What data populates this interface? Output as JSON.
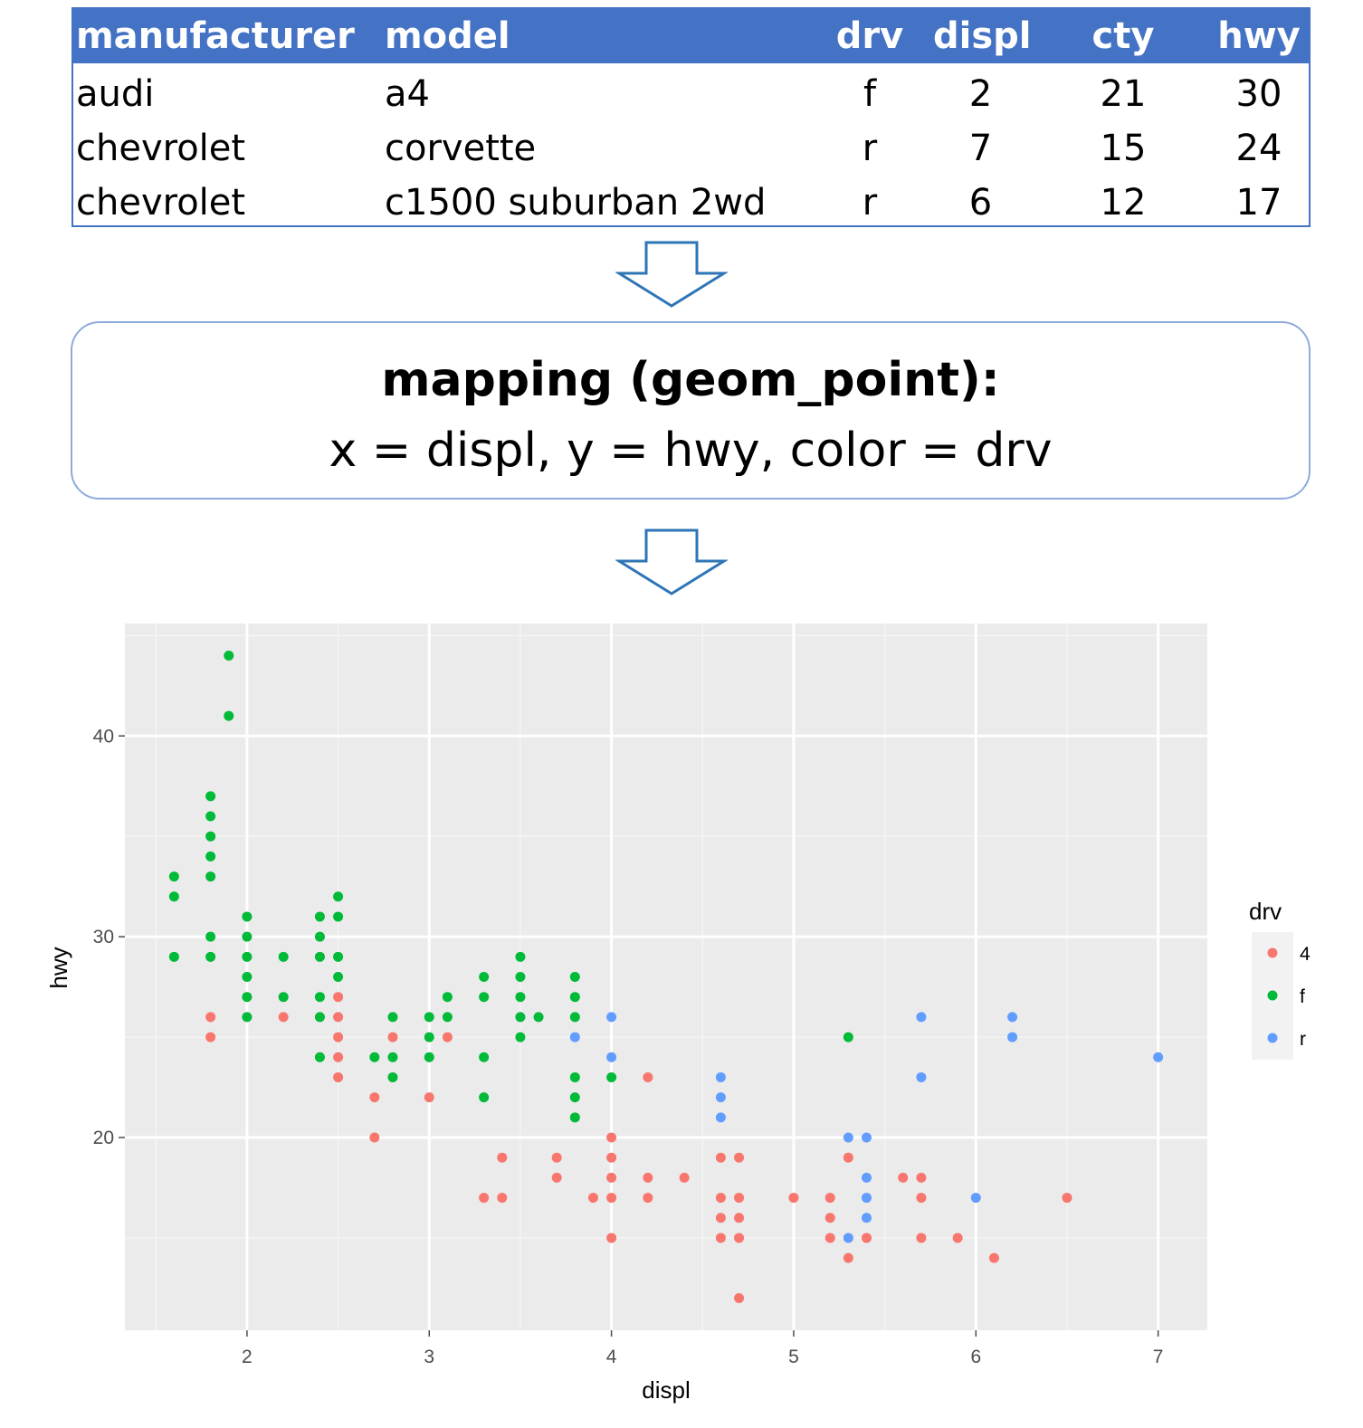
{
  "table": {
    "headers": [
      "manufacturer",
      "model",
      "drv",
      "displ",
      "cty",
      "hwy"
    ],
    "rows": [
      [
        "audi",
        "a4",
        "f",
        "2",
        "21",
        "30"
      ],
      [
        "chevrolet",
        "corvette",
        "r",
        "7",
        "15",
        "24"
      ],
      [
        "chevrolet",
        "c1500 suburban 2wd",
        "r",
        "6",
        "12",
        "17"
      ]
    ],
    "header_color": "#4472c4"
  },
  "mapping": {
    "title": "mapping (geom_point):",
    "body": "x = displ, y = hwy, color = drv"
  },
  "arrow_color": "#2e75b6",
  "chart_data": {
    "type": "scatter",
    "title": "",
    "xlabel": "displ",
    "ylabel": "hwy",
    "xlim": [
      1.33,
      7.27
    ],
    "ylim": [
      10.4,
      45.6
    ],
    "xticks": [
      "2",
      "3",
      "4",
      "5",
      "6",
      "7"
    ],
    "yticks": [
      "20",
      "30",
      "40"
    ],
    "grid": true,
    "legend": {
      "title": "drv",
      "position": "right"
    },
    "series": [
      {
        "name": "4",
        "color": "#f8766d",
        "points": [
          [
            1.8,
            26
          ],
          [
            1.8,
            25
          ],
          [
            2.2,
            26
          ],
          [
            2.5,
            27
          ],
          [
            2.5,
            26
          ],
          [
            2.5,
            25
          ],
          [
            2.5,
            24
          ],
          [
            2.5,
            23
          ],
          [
            2.7,
            22
          ],
          [
            2.7,
            20
          ],
          [
            2.8,
            25
          ],
          [
            3.0,
            22
          ],
          [
            3.1,
            25
          ],
          [
            3.4,
            19
          ],
          [
            3.4,
            17
          ],
          [
            3.3,
            17
          ],
          [
            3.7,
            19
          ],
          [
            3.7,
            18
          ],
          [
            3.9,
            17
          ],
          [
            4.0,
            20
          ],
          [
            4.0,
            19
          ],
          [
            4.0,
            18
          ],
          [
            4.0,
            17
          ],
          [
            4.0,
            15
          ],
          [
            4.2,
            23
          ],
          [
            4.2,
            18
          ],
          [
            4.2,
            17
          ],
          [
            4.4,
            18
          ],
          [
            4.6,
            19
          ],
          [
            4.6,
            17
          ],
          [
            4.6,
            16
          ],
          [
            4.6,
            15
          ],
          [
            4.7,
            19
          ],
          [
            4.7,
            17
          ],
          [
            4.7,
            16
          ],
          [
            4.7,
            15
          ],
          [
            4.7,
            12
          ],
          [
            5.0,
            17
          ],
          [
            5.2,
            17
          ],
          [
            5.2,
            16
          ],
          [
            5.2,
            15
          ],
          [
            5.3,
            19
          ],
          [
            5.3,
            14
          ],
          [
            5.4,
            15
          ],
          [
            5.6,
            18
          ],
          [
            5.7,
            18
          ],
          [
            5.7,
            17
          ],
          [
            5.7,
            15
          ],
          [
            5.9,
            15
          ],
          [
            6.1,
            14
          ],
          [
            6.5,
            17
          ]
        ]
      },
      {
        "name": "f",
        "color": "#00ba38",
        "points": [
          [
            1.6,
            33
          ],
          [
            1.6,
            32
          ],
          [
            1.6,
            29
          ],
          [
            1.8,
            37
          ],
          [
            1.8,
            36
          ],
          [
            1.8,
            35
          ],
          [
            1.8,
            34
          ],
          [
            1.8,
            33
          ],
          [
            1.8,
            30
          ],
          [
            1.8,
            29
          ],
          [
            1.9,
            44
          ],
          [
            1.9,
            41
          ],
          [
            2.0,
            31
          ],
          [
            2.0,
            30
          ],
          [
            2.0,
            29
          ],
          [
            2.0,
            28
          ],
          [
            2.0,
            27
          ],
          [
            2.0,
            26
          ],
          [
            2.2,
            29
          ],
          [
            2.2,
            27
          ],
          [
            2.4,
            31
          ],
          [
            2.4,
            30
          ],
          [
            2.4,
            29
          ],
          [
            2.4,
            27
          ],
          [
            2.4,
            26
          ],
          [
            2.4,
            24
          ],
          [
            2.5,
            32
          ],
          [
            2.5,
            31
          ],
          [
            2.5,
            29
          ],
          [
            2.5,
            28
          ],
          [
            2.7,
            24
          ],
          [
            2.8,
            26
          ],
          [
            2.8,
            24
          ],
          [
            2.8,
            23
          ],
          [
            3.0,
            26
          ],
          [
            3.0,
            25
          ],
          [
            3.0,
            24
          ],
          [
            3.1,
            27
          ],
          [
            3.1,
            26
          ],
          [
            3.3,
            28
          ],
          [
            3.3,
            27
          ],
          [
            3.3,
            24
          ],
          [
            3.3,
            22
          ],
          [
            3.5,
            29
          ],
          [
            3.5,
            28
          ],
          [
            3.5,
            27
          ],
          [
            3.5,
            26
          ],
          [
            3.5,
            25
          ],
          [
            3.6,
            26
          ],
          [
            3.8,
            28
          ],
          [
            3.8,
            27
          ],
          [
            3.8,
            26
          ],
          [
            3.8,
            23
          ],
          [
            3.8,
            22
          ],
          [
            3.8,
            21
          ],
          [
            4.0,
            23
          ],
          [
            5.3,
            25
          ]
        ]
      },
      {
        "name": "r",
        "color": "#619cff",
        "points": [
          [
            3.8,
            25
          ],
          [
            4.0,
            26
          ],
          [
            4.0,
            24
          ],
          [
            4.6,
            23
          ],
          [
            4.6,
            22
          ],
          [
            4.6,
            21
          ],
          [
            5.3,
            20
          ],
          [
            5.3,
            15
          ],
          [
            5.4,
            20
          ],
          [
            5.4,
            18
          ],
          [
            5.4,
            17
          ],
          [
            5.4,
            16
          ],
          [
            5.7,
            26
          ],
          [
            5.7,
            23
          ],
          [
            6.0,
            17
          ],
          [
            6.2,
            26
          ],
          [
            6.2,
            25
          ],
          [
            7.0,
            24
          ]
        ]
      }
    ]
  }
}
